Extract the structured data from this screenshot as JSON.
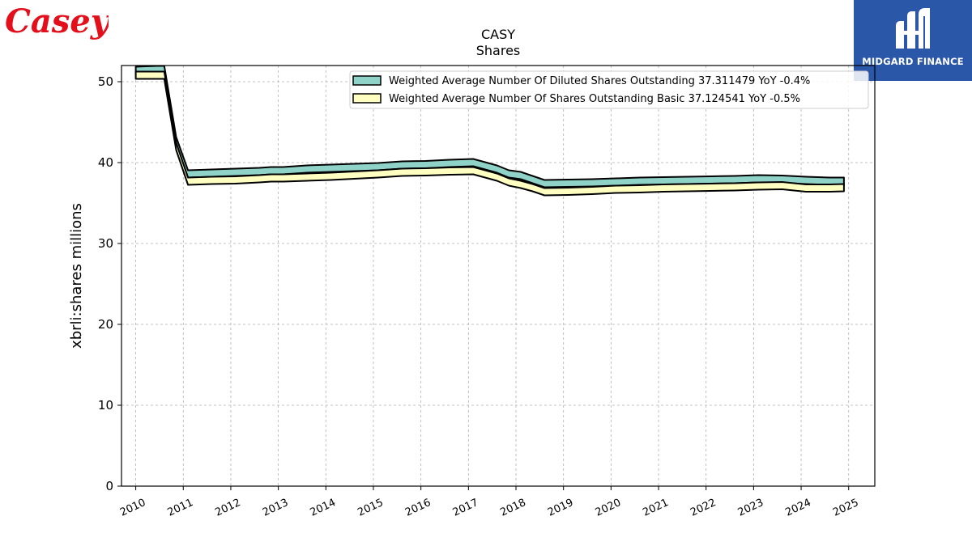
{
  "branding": {
    "company_logo_text": "Casey's",
    "company_logo_color": "#e3101c",
    "partner_logo_text": "MIDGARD FINANCE",
    "partner_logo_color": "#2b57a9"
  },
  "chart_data": {
    "type": "area",
    "title": "CASY",
    "subtitle": "Shares",
    "xlabel": "",
    "ylabel": "xbrli:shares millions",
    "xlim": [
      2009.7,
      2025.55
    ],
    "ylim": [
      0,
      52
    ],
    "x_ticks": [
      "2010",
      "2011",
      "2012",
      "2013",
      "2014",
      "2015",
      "2016",
      "2017",
      "2018",
      "2019",
      "2020",
      "2021",
      "2022",
      "2023",
      "2024",
      "2025"
    ],
    "y_ticks": [
      "0",
      "10",
      "20",
      "30",
      "40",
      "50"
    ],
    "grid": true,
    "legend_position": "top-right",
    "series": [
      {
        "name": "Weighted Average Number Of Diluted Shares Outstanding  37.311479 YoY -0.4%",
        "color": "#8fd3c8",
        "x": [
          2010.0,
          2010.2,
          2010.45,
          2010.6,
          2010.85,
          2011.1,
          2011.35,
          2011.6,
          2012.1,
          2012.6,
          2012.85,
          2013.1,
          2013.6,
          2014.1,
          2014.6,
          2015.1,
          2015.6,
          2016.1,
          2016.6,
          2017.1,
          2017.35,
          2017.6,
          2017.85,
          2018.1,
          2018.35,
          2018.6,
          2019.1,
          2019.6,
          2020.1,
          2020.6,
          2021.1,
          2021.6,
          2022.1,
          2022.6,
          2023.1,
          2023.6,
          2024.1,
          2024.6,
          2024.9
        ],
        "values": [
          51.4,
          51.45,
          51.5,
          51.5,
          42.7,
          38.6,
          38.65,
          38.7,
          38.8,
          38.9,
          39.0,
          39.0,
          39.2,
          39.3,
          39.4,
          39.5,
          39.7,
          39.75,
          39.9,
          40.0,
          39.6,
          39.2,
          38.6,
          38.4,
          37.9,
          37.4,
          37.45,
          37.5,
          37.6,
          37.7,
          37.75,
          37.8,
          37.85,
          37.9,
          38.0,
          37.95,
          37.8,
          37.7,
          37.7
        ]
      },
      {
        "name": "Weighted Average Number Of Shares Outstanding Basic  37.124541 YoY -0.5%",
        "color": "#ffffc2",
        "x": [
          2010.0,
          2010.2,
          2010.45,
          2010.6,
          2010.85,
          2011.1,
          2011.35,
          2011.6,
          2012.1,
          2012.6,
          2012.85,
          2013.1,
          2013.6,
          2014.1,
          2014.6,
          2015.1,
          2015.6,
          2016.1,
          2016.6,
          2017.1,
          2017.35,
          2017.6,
          2017.85,
          2018.1,
          2018.35,
          2018.6,
          2019.1,
          2019.6,
          2020.1,
          2020.6,
          2021.1,
          2021.6,
          2022.1,
          2022.6,
          2023.1,
          2023.6,
          2024.1,
          2024.6,
          2024.9
        ],
        "values": [
          50.8,
          50.8,
          50.8,
          50.8,
          42.0,
          37.7,
          37.75,
          37.8,
          37.85,
          38.0,
          38.1,
          38.1,
          38.2,
          38.3,
          38.45,
          38.6,
          38.8,
          38.85,
          38.95,
          39.0,
          38.6,
          38.2,
          37.6,
          37.3,
          36.9,
          36.4,
          36.45,
          36.55,
          36.7,
          36.75,
          36.85,
          36.9,
          36.95,
          37.0,
          37.1,
          37.15,
          36.85,
          36.85,
          36.9
        ]
      }
    ]
  }
}
